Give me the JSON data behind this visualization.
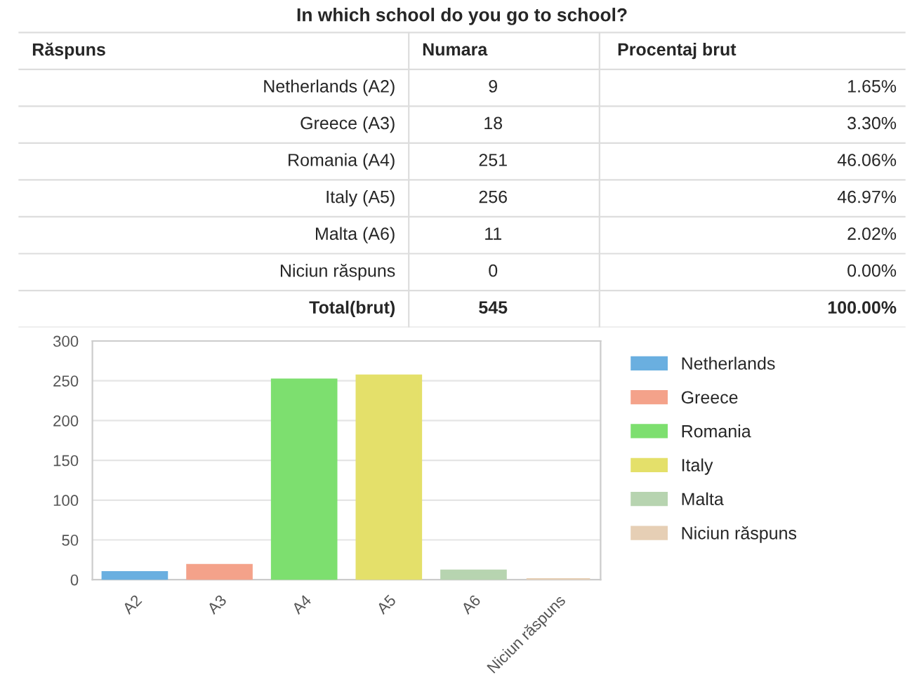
{
  "chart_data": [
    {
      "type": "other",
      "title": "In which school do you go to school?",
      "annotations": [
        "Răspuns",
        "Numara",
        "Procentaj brut",
        "Netherlands (A2)",
        "9",
        "1.65%",
        "Greece (A3)",
        "18",
        "3.30%",
        "Romania (A4)",
        "251",
        "46.06%",
        "Italy (A5)",
        "256",
        "46.97%",
        "Malta (A6)",
        "11",
        "2.02%",
        "Niciun răspuns",
        "0",
        "0.00%",
        "Total(brut)",
        "545",
        "100.00%"
      ]
    },
    {
      "type": "bar",
      "categories": [
        "A2",
        "A3",
        "A4",
        "A5",
        "A6",
        "Niciun răspuns"
      ],
      "series": [
        {
          "name": "Netherlands",
          "color": "#6aafe0",
          "values": [
            9,
            null,
            null,
            null,
            null,
            null
          ]
        },
        {
          "name": "Greece",
          "color": "#f4a28a",
          "values": [
            null,
            18,
            null,
            null,
            null,
            null
          ]
        },
        {
          "name": "Romania",
          "color": "#7ddf6f",
          "values": [
            null,
            null,
            251,
            null,
            null,
            null
          ]
        },
        {
          "name": "Italy",
          "color": "#e4e06a",
          "values": [
            null,
            null,
            null,
            256,
            null,
            null
          ]
        },
        {
          "name": "Malta",
          "color": "#b7d4b0",
          "values": [
            null,
            null,
            null,
            null,
            11,
            null
          ]
        },
        {
          "name": "Niciun răspuns",
          "color": "#e6cfb5",
          "values": [
            null,
            null,
            null,
            null,
            null,
            0
          ]
        }
      ],
      "ylim": [
        0,
        300
      ],
      "yticks": [
        0,
        50,
        100,
        150,
        200,
        250,
        300
      ],
      "grid": "y",
      "legend": "right"
    }
  ]
}
